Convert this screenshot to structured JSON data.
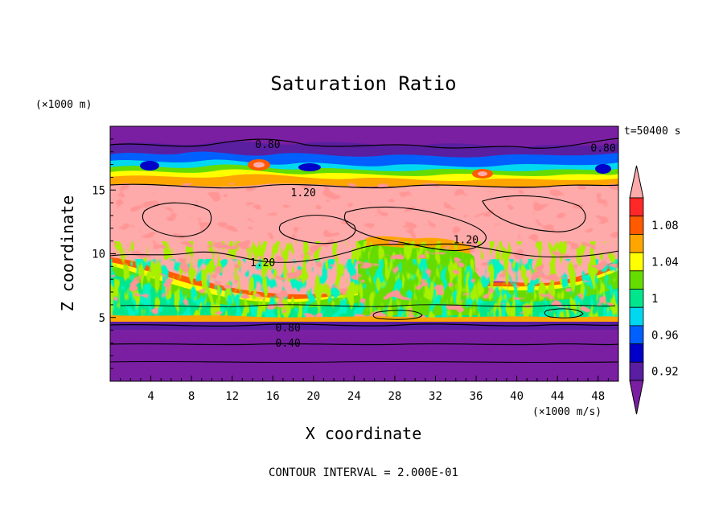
{
  "chart_data": {
    "type": "heatmap",
    "title": "Saturation Ratio",
    "xlabel": "X coordinate",
    "ylabel": "Z coordinate",
    "x_unit": "(×1000 m/s)",
    "y_unit": "(×1000 m)",
    "time_label": "t=50400 s",
    "footer": "CONTOUR INTERVAL = 2.000E-01",
    "xlim": [
      0,
      50
    ],
    "ylim": [
      0,
      20
    ],
    "x_ticks": [
      4,
      8,
      12,
      16,
      20,
      24,
      28,
      32,
      36,
      40,
      44,
      48
    ],
    "y_ticks": [
      5,
      10,
      15
    ],
    "contour_labels": [
      {
        "text": "0.80",
        "x": 15.5,
        "z": 18.5
      },
      {
        "text": "0.80",
        "x": 48.5,
        "z": 18.2
      },
      {
        "text": "1.20",
        "x": 19,
        "z": 14.7
      },
      {
        "text": "1.20",
        "x": 35,
        "z": 11.0
      },
      {
        "text": "1.20",
        "x": 15,
        "z": 9.2
      },
      {
        "text": "0.80",
        "x": 17.5,
        "z": 4.1
      },
      {
        "text": "0.40",
        "x": 17.5,
        "z": 2.9
      }
    ],
    "colorbar": {
      "levels": [
        0.92,
        0.94,
        0.96,
        0.98,
        1.0,
        1.02,
        1.04,
        1.06,
        1.08,
        1.1
      ],
      "tick_labels": [
        "0.92",
        "0.96",
        "1",
        "1.04",
        "1.08"
      ],
      "colors": {
        "below": "#7a1fa2",
        "bands": [
          "#5a1ea0",
          "#0000c8",
          "#0060ff",
          "#00d8f0",
          "#00e68c",
          "#64dc00",
          "#ffff00",
          "#ffa500",
          "#ff5a00",
          "#ff2828"
        ],
        "above": "#ffaaaa"
      }
    }
  }
}
